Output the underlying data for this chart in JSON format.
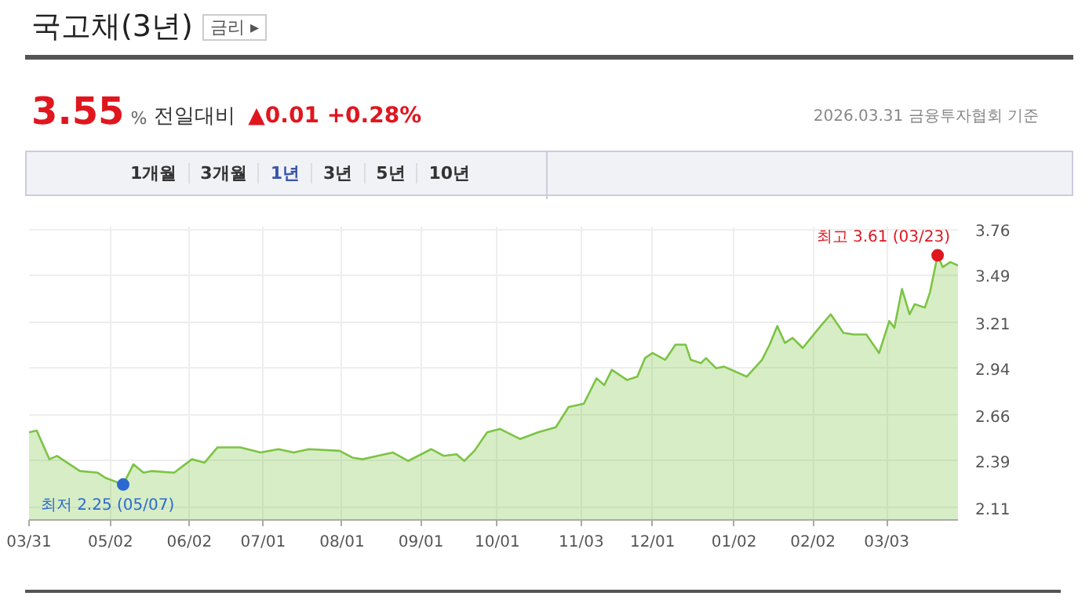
{
  "chart_data": {
    "type": "area",
    "title": "국고채(3년)",
    "x": [
      "2025-03-31",
      "2025-04-03",
      "2025-04-08",
      "2025-04-11",
      "2025-04-16",
      "2025-04-20",
      "2025-04-27",
      "2025-04-30",
      "2025-05-07",
      "2025-05-11",
      "2025-05-15",
      "2025-05-18",
      "2025-05-27",
      "2025-06-03",
      "2025-06-08",
      "2025-06-13",
      "2025-06-22",
      "2025-06-30",
      "2025-07-07",
      "2025-07-13",
      "2025-07-19",
      "2025-07-31",
      "2025-08-05",
      "2025-08-09",
      "2025-08-15",
      "2025-08-21",
      "2025-08-27",
      "2025-09-05",
      "2025-09-10",
      "2025-09-15",
      "2025-09-18",
      "2025-09-22",
      "2025-09-27",
      "2025-10-02",
      "2025-10-10",
      "2025-10-17",
      "2025-10-24",
      "2025-10-29",
      "2025-11-04",
      "2025-11-09",
      "2025-11-12",
      "2025-11-15",
      "2025-11-21",
      "2025-11-25",
      "2025-11-28",
      "2025-12-01",
      "2025-12-06",
      "2025-12-10",
      "2025-12-14",
      "2025-12-16",
      "2025-12-20",
      "2025-12-22",
      "2025-12-26",
      "2025-12-29",
      "2026-01-07",
      "2026-01-13",
      "2026-01-16",
      "2026-01-19",
      "2026-01-22",
      "2026-01-25",
      "2026-01-29",
      "2026-02-05",
      "2026-02-09",
      "2026-02-14",
      "2026-02-18",
      "2026-02-23",
      "2026-02-28",
      "2026-03-04",
      "2026-03-06",
      "2026-03-09",
      "2026-03-12",
      "2026-03-14",
      "2026-03-18",
      "2026-03-20",
      "2026-03-23",
      "2026-03-25",
      "2026-03-28",
      "2026-03-31"
    ],
    "series": [
      {
        "color": "#7cc443",
        "values": [
          2.56,
          2.57,
          2.4,
          2.42,
          2.37,
          2.33,
          2.32,
          2.29,
          2.25,
          2.37,
          2.32,
          2.33,
          2.32,
          2.4,
          2.38,
          2.47,
          2.47,
          2.44,
          2.46,
          2.44,
          2.46,
          2.45,
          2.41,
          2.4,
          2.42,
          2.44,
          2.39,
          2.46,
          2.42,
          2.43,
          2.39,
          2.45,
          2.56,
          2.58,
          2.52,
          2.56,
          2.59,
          2.71,
          2.73,
          2.88,
          2.84,
          2.93,
          2.87,
          2.89,
          3.0,
          3.03,
          2.99,
          3.08,
          3.08,
          2.99,
          2.97,
          3.0,
          2.94,
          2.95,
          2.89,
          2.99,
          3.08,
          3.19,
          3.09,
          3.12,
          3.06,
          3.19,
          3.26,
          3.15,
          3.14,
          3.14,
          3.03,
          3.22,
          3.18,
          3.41,
          3.26,
          3.32,
          3.3,
          3.39,
          3.61,
          3.54,
          3.57,
          3.55
        ]
      }
    ],
    "xlim": [
      "2025-03-31",
      "2026-03-31"
    ],
    "xticks": [
      {
        "value": "2025-03-31",
        "label": "03/31"
      },
      {
        "value": "2025-05-02",
        "label": "05/02"
      },
      {
        "value": "2025-06-02",
        "label": "06/02"
      },
      {
        "value": "2025-07-01",
        "label": "07/01"
      },
      {
        "value": "2025-08-01",
        "label": "08/01"
      },
      {
        "value": "2025-09-01",
        "label": "09/01"
      },
      {
        "value": "2025-10-01",
        "label": "10/01"
      },
      {
        "value": "2025-11-03",
        "label": "11/03"
      },
      {
        "value": "2025-12-01",
        "label": "12/01"
      },
      {
        "value": "2026-01-02",
        "label": "01/02"
      },
      {
        "value": "2026-02-02",
        "label": "02/02"
      },
      {
        "value": "2026-03-03",
        "label": "03/03"
      }
    ],
    "ylim": [
      2.04,
      3.78
    ],
    "yticks": [
      2.11,
      2.39,
      2.66,
      2.94,
      3.21,
      3.49,
      3.76
    ],
    "grid": true,
    "annotations": [
      "금리 ▸",
      "3.55",
      "%",
      "전일대비",
      "▲0.01 +0.28%",
      "2026.03.31 금융투자협회 기준",
      "1개월",
      "3개월",
      "1년",
      "3년",
      "5년",
      "10년",
      {
        "text": "최고 3.61 (03/23)",
        "x": "2026-03-23",
        "y": 3.61
      },
      {
        "text": "최저 2.25 (05/07)",
        "x": "2025-05-07",
        "y": 2.25
      }
    ]
  }
}
